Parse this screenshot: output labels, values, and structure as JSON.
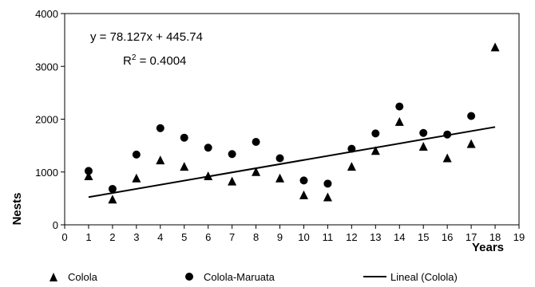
{
  "chart_data": {
    "type": "scatter",
    "title": "",
    "xlabel": "Years",
    "ylabel": "Nests",
    "xlim": [
      0,
      19
    ],
    "ylim": [
      0,
      4000
    ],
    "x_ticks": [
      0,
      1,
      2,
      3,
      4,
      5,
      6,
      7,
      8,
      9,
      10,
      11,
      12,
      13,
      14,
      15,
      16,
      17,
      18,
      19
    ],
    "y_ticks": [
      0,
      1000,
      2000,
      3000,
      4000
    ],
    "grid": false,
    "legend_position": "bottom",
    "series": [
      {
        "name": "Colola",
        "marker": "triangle",
        "color": "#000000",
        "x": [
          1,
          2,
          3,
          4,
          5,
          6,
          7,
          8,
          9,
          10,
          11,
          12,
          13,
          14,
          15,
          16,
          17,
          18
        ],
        "y": [
          920,
          480,
          880,
          1220,
          1100,
          920,
          820,
          1000,
          880,
          560,
          520,
          1100,
          1400,
          1950,
          1480,
          1260,
          1530,
          3360
        ]
      },
      {
        "name": "Colola-Maruata",
        "marker": "circle",
        "color": "#000000",
        "x": [
          1,
          2,
          3,
          4,
          5,
          6,
          7,
          8,
          9,
          10,
          11,
          12,
          13,
          14,
          15,
          16,
          17
        ],
        "y": [
          1020,
          680,
          1330,
          1830,
          1650,
          1460,
          1340,
          1570,
          1260,
          840,
          780,
          1440,
          1730,
          2240,
          1740,
          1710,
          2060
        ]
      }
    ],
    "trendline": {
      "name": "Lineal (Colola)",
      "slope": 78.127,
      "intercept": 445.74,
      "x_range": [
        1,
        18
      ],
      "color": "#000000"
    },
    "annotations": {
      "equation": "y = 78.127x + 445.74",
      "r2_prefix": "R",
      "r2_sup": "2",
      "r2_suffix": " = 0.4004"
    }
  }
}
